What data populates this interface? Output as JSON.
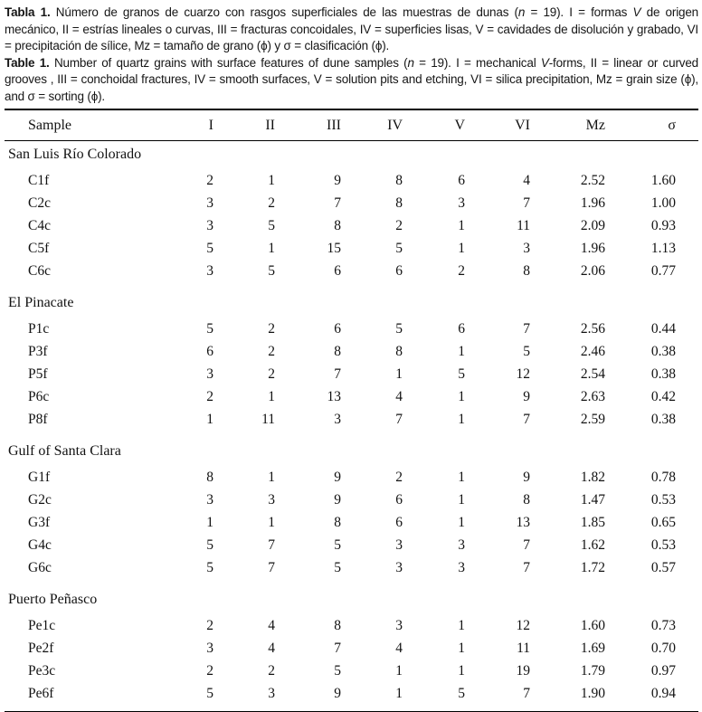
{
  "captions": {
    "es": [
      {
        "t": "Tabla 1.",
        "style": "bold"
      },
      {
        "t": " Número de granos de cuarzo con rasgos superficiales de las muestras de dunas (",
        "style": "normal"
      },
      {
        "t": "n",
        "style": "italic"
      },
      {
        "t": " = 19). I = formas ",
        "style": "normal"
      },
      {
        "t": "V",
        "style": "italic"
      },
      {
        "t": " de origen mecánico, II = estrías lineales o curvas, III = fracturas concoidales, IV = superficies lisas, V = cavidades de disolución y grabado, VI = precipitación de sílice, Mz = tamaño de grano (ϕ) y σ = clasificación (ϕ).",
        "style": "normal"
      }
    ],
    "en": [
      {
        "t": "Table 1.",
        "style": "bold"
      },
      {
        "t": " Number of quartz grains with surface features of dune samples (",
        "style": "normal"
      },
      {
        "t": "n",
        "style": "italic"
      },
      {
        "t": " = 19). I = mechanical ",
        "style": "normal"
      },
      {
        "t": "V",
        "style": "italic"
      },
      {
        "t": "-forms, II = linear or curved grooves , III = conchoidal fractures, IV = smooth surfaces, V = solution pits and etching, VI = silica precipitation, Mz = grain size (ϕ), and σ = sorting (ϕ).",
        "style": "normal"
      }
    ]
  },
  "table": {
    "columns": [
      "Sample",
      "I",
      "II",
      "III",
      "IV",
      "V",
      "VI",
      "Mz",
      "σ"
    ],
    "groups": [
      {
        "name": "San Luis Río Colorado",
        "rows": [
          {
            "sample": "C1f",
            "values": [
              "2",
              "1",
              "9",
              "8",
              "6",
              "4",
              "2.52",
              "1.60"
            ]
          },
          {
            "sample": "C2c",
            "values": [
              "3",
              "2",
              "7",
              "8",
              "3",
              "7",
              "1.96",
              "1.00"
            ]
          },
          {
            "sample": "C4c",
            "values": [
              "3",
              "5",
              "8",
              "2",
              "1",
              "11",
              "2.09",
              "0.93"
            ]
          },
          {
            "sample": "C5f",
            "values": [
              "5",
              "1",
              "15",
              "5",
              "1",
              "3",
              "1.96",
              "1.13"
            ]
          },
          {
            "sample": "C6c",
            "values": [
              "3",
              "5",
              "6",
              "6",
              "2",
              "8",
              "2.06",
              "0.77"
            ]
          }
        ]
      },
      {
        "name": "El Pinacate",
        "rows": [
          {
            "sample": "P1c",
            "values": [
              "5",
              "2",
              "6",
              "5",
              "6",
              "7",
              "2.56",
              "0.44"
            ]
          },
          {
            "sample": "P3f",
            "values": [
              "6",
              "2",
              "8",
              "8",
              "1",
              "5",
              "2.46",
              "0.38"
            ]
          },
          {
            "sample": "P5f",
            "values": [
              "3",
              "2",
              "7",
              "1",
              "5",
              "12",
              "2.54",
              "0.38"
            ]
          },
          {
            "sample": "P6c",
            "values": [
              "2",
              "1",
              "13",
              "4",
              "1",
              "9",
              "2.63",
              "0.42"
            ]
          },
          {
            "sample": "P8f",
            "values": [
              "1",
              "11",
              "3",
              "7",
              "1",
              "7",
              "2.59",
              "0.38"
            ]
          }
        ]
      },
      {
        "name": "Gulf of Santa Clara",
        "rows": [
          {
            "sample": "G1f",
            "values": [
              "8",
              "1",
              "9",
              "2",
              "1",
              "9",
              "1.82",
              "0.78"
            ]
          },
          {
            "sample": "G2c",
            "values": [
              "3",
              "3",
              "9",
              "6",
              "1",
              "8",
              "1.47",
              "0.53"
            ]
          },
          {
            "sample": "G3f",
            "values": [
              "1",
              "1",
              "8",
              "6",
              "1",
              "13",
              "1.85",
              "0.65"
            ]
          },
          {
            "sample": "G4c",
            "values": [
              "5",
              "7",
              "5",
              "3",
              "3",
              "7",
              "1.62",
              "0.53"
            ]
          },
          {
            "sample": "G6c",
            "values": [
              "5",
              "7",
              "5",
              "3",
              "3",
              "7",
              "1.72",
              "0.57"
            ]
          }
        ]
      },
      {
        "name": "Puerto Peñasco",
        "rows": [
          {
            "sample": "Pe1c",
            "values": [
              "2",
              "4",
              "8",
              "3",
              "1",
              "12",
              "1.60",
              "0.73"
            ]
          },
          {
            "sample": "Pe2f",
            "values": [
              "3",
              "4",
              "7",
              "4",
              "1",
              "11",
              "1.69",
              "0.70"
            ]
          },
          {
            "sample": "Pe3c",
            "values": [
              "2",
              "2",
              "5",
              "1",
              "1",
              "19",
              "1.79",
              "0.97"
            ]
          },
          {
            "sample": "Pe6f",
            "values": [
              "5",
              "3",
              "9",
              "1",
              "5",
              "7",
              "1.90",
              "0.94"
            ]
          }
        ]
      }
    ]
  },
  "colors": {
    "text": "#141414",
    "rule": "#000000",
    "background": "#ffffff"
  }
}
